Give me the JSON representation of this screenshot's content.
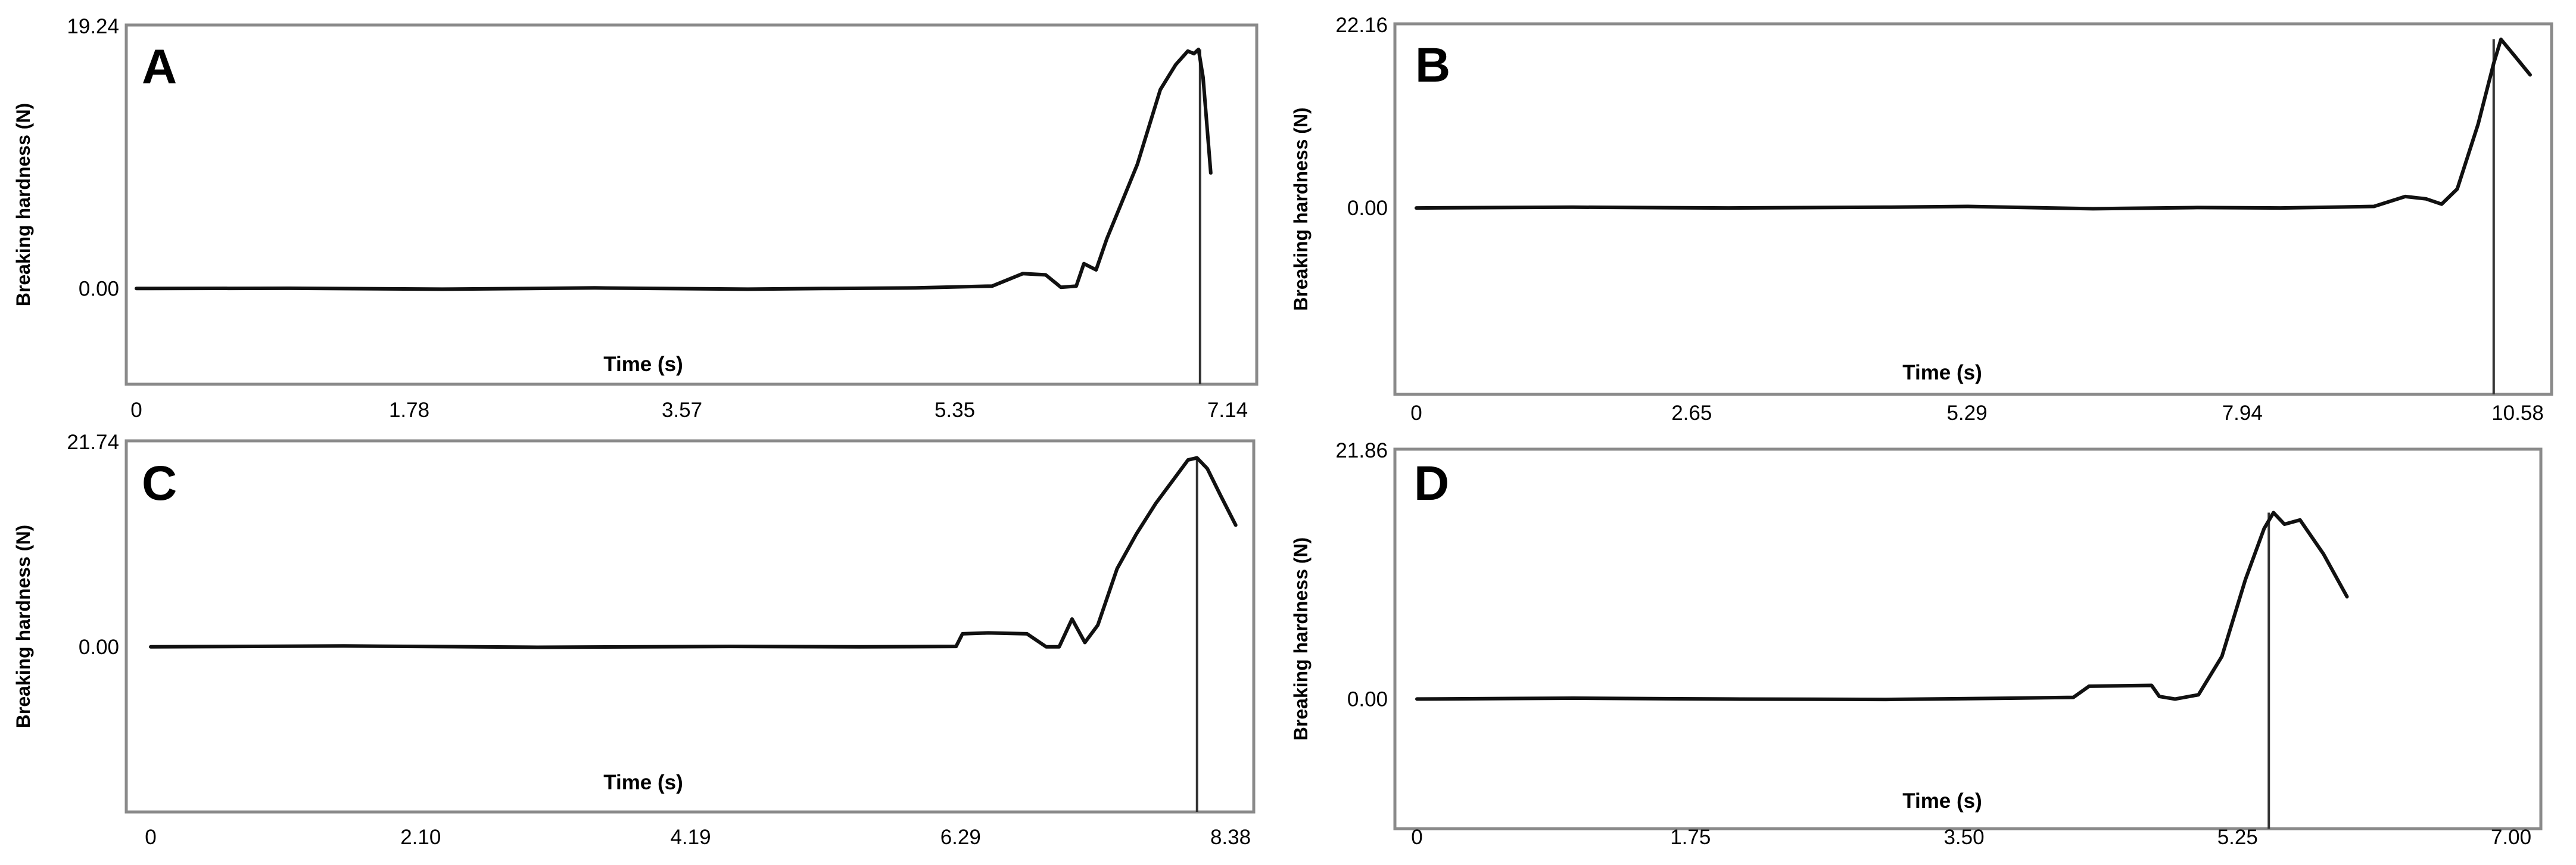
{
  "chart_data": [
    {
      "type": "line",
      "panel_label": "A",
      "ylabel": "Breaking hardness (N)",
      "xlabel": "Time (s)",
      "x_ticks": [
        "0",
        "1.78",
        "3.57",
        "5.35",
        "7.14"
      ],
      "y_ticks": [
        "19.24",
        "0.00"
      ],
      "xlim": [
        0,
        7.14
      ],
      "ylim": [
        -7.7,
        21.2
      ],
      "peak_marker_x": 6.96,
      "series": [
        {
          "x": [
            0,
            1.0,
            2.0,
            3.0,
            4.0,
            4.5,
            5.1,
            5.6,
            5.8,
            5.95,
            6.05,
            6.15,
            6.2,
            6.28,
            6.35,
            6.45,
            6.55,
            6.7,
            6.8,
            6.88,
            6.92,
            6.95,
            6.98,
            7.03
          ],
          "y": [
            0.0,
            0.02,
            -0.05,
            0.05,
            -0.05,
            0.0,
            0.05,
            0.2,
            1.2,
            1.1,
            0.1,
            0.2,
            2.0,
            1.5,
            4.0,
            7.0,
            10.0,
            16.0,
            18.0,
            19.1,
            18.9,
            19.24,
            17.0,
            9.3
          ]
        }
      ]
    },
    {
      "type": "line",
      "panel_label": "B",
      "ylabel": "Breaking hardness (N)",
      "xlabel": "Time (s)",
      "x_ticks": [
        "0",
        "2.65",
        "5.29",
        "7.94",
        "10.58"
      ],
      "y_ticks": [
        "22.16",
        "0.00"
      ],
      "xlim": [
        0,
        10.58
      ],
      "ylim": [
        -24.5,
        24.2
      ],
      "peak_marker_x": 10.35,
      "series": [
        {
          "x": [
            0,
            1.5,
            3.0,
            4.5,
            5.3,
            6.5,
            7.5,
            8.3,
            8.8,
            9.2,
            9.5,
            9.7,
            9.85,
            10.0,
            10.2,
            10.35,
            10.42,
            10.55,
            10.7
          ],
          "y": [
            0.0,
            0.1,
            0.0,
            0.1,
            0.2,
            -0.1,
            0.05,
            0.0,
            0.1,
            0.2,
            1.5,
            1.2,
            0.5,
            2.5,
            11.0,
            19.0,
            22.16,
            20.0,
            17.5
          ]
        }
      ]
    },
    {
      "type": "line",
      "panel_label": "C",
      "ylabel": "Breaking hardness (N)",
      "xlabel": "Time (s)",
      "x_ticks": [
        "0",
        "2.10",
        "4.19",
        "6.29",
        "8.38"
      ],
      "y_ticks": [
        "21.74",
        "0.00"
      ],
      "xlim": [
        0,
        8.38
      ],
      "ylim": [
        -19.0,
        23.7
      ],
      "peak_marker_x": 8.12,
      "series": [
        {
          "x": [
            0,
            1.5,
            3.0,
            4.5,
            5.5,
            6.25,
            6.3,
            6.5,
            6.8,
            6.95,
            7.05,
            7.15,
            7.25,
            7.35,
            7.5,
            7.65,
            7.8,
            7.95,
            8.05,
            8.12,
            8.2,
            8.3,
            8.42
          ],
          "y": [
            0.0,
            0.1,
            -0.05,
            0.05,
            0.0,
            0.05,
            1.5,
            1.6,
            1.5,
            0.0,
            0.0,
            3.2,
            0.5,
            2.5,
            9.0,
            13.0,
            16.5,
            19.5,
            21.5,
            21.74,
            20.5,
            17.5,
            14.0
          ]
        }
      ]
    },
    {
      "type": "line",
      "panel_label": "D",
      "ylabel": "Breaking hardness (N)",
      "xlabel": "Time (s)",
      "x_ticks": [
        "0",
        "1.75",
        "3.50",
        "5.25",
        "7.00"
      ],
      "y_ticks": [
        "21.86",
        "0.00"
      ],
      "xlim": [
        0,
        7.0
      ],
      "ylim": [
        -15.2,
        29.3
      ],
      "peak_marker_x": 5.45,
      "series": [
        {
          "x": [
            0,
            1.0,
            2.0,
            3.0,
            3.8,
            4.2,
            4.3,
            4.7,
            4.75,
            4.85,
            5.0,
            5.15,
            5.3,
            5.42,
            5.48,
            5.55,
            5.65,
            5.8,
            5.95
          ],
          "y": [
            0.0,
            0.1,
            0.0,
            -0.05,
            0.1,
            0.2,
            1.5,
            1.6,
            0.3,
            0.0,
            0.5,
            5.0,
            14.0,
            20.0,
            21.86,
            20.5,
            21.0,
            17.0,
            12.0
          ]
        }
      ]
    }
  ]
}
